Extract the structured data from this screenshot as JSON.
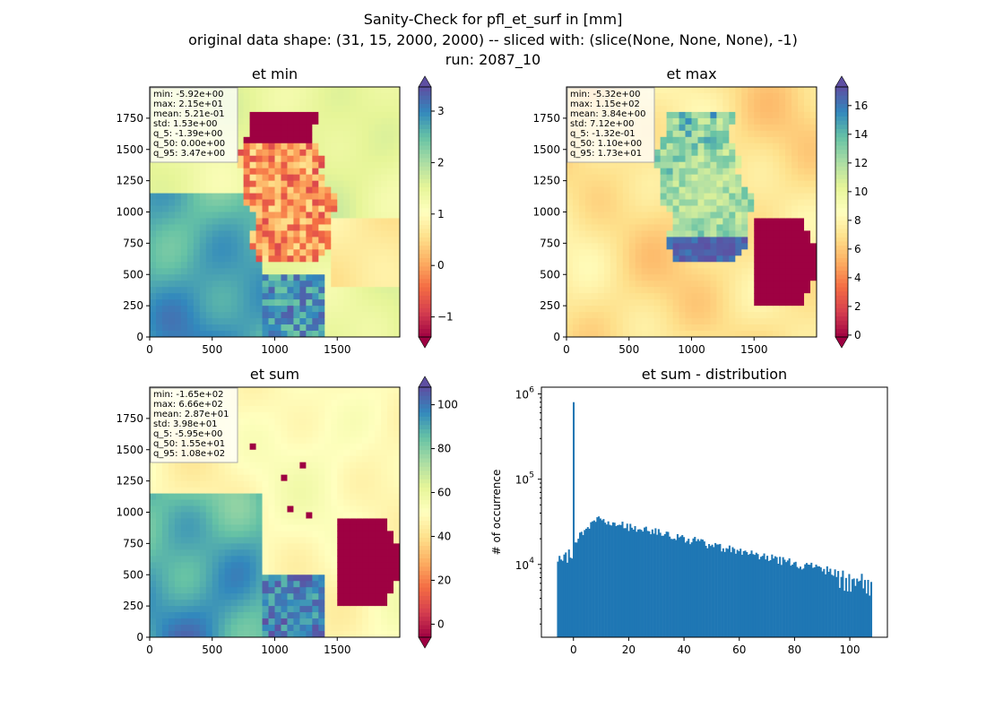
{
  "figure": {
    "title_lines": [
      "Sanity-Check for pfl_et_surf in [mm]",
      "original data shape: (31, 15, 2000, 2000) -- sliced with: (slice(None, None, None), -1)",
      "run: 2087_10"
    ]
  },
  "colormap": {
    "name": "Spectral",
    "stops": [
      "#9e0142",
      "#d53e4f",
      "#f46d43",
      "#fdae61",
      "#fee08b",
      "#ffffbf",
      "#e6f598",
      "#abdda4",
      "#66c2a5",
      "#3288bd",
      "#5e4fa2"
    ]
  },
  "chart_data": [
    {
      "type": "heatmap",
      "title": "et min",
      "xlim": [
        0,
        2000
      ],
      "ylim": [
        0,
        2000
      ],
      "xticks": [
        0,
        500,
        1000,
        1500
      ],
      "yticks": [
        0,
        250,
        500,
        750,
        1000,
        1250,
        1500,
        1750
      ],
      "colorbar": {
        "range": [
          -1.39,
          3.47
        ],
        "ticks": [
          -1,
          0,
          1,
          2,
          3
        ],
        "extend": "both"
      },
      "stats": [
        "min: -5.92e+00",
        "max: 2.15e+01",
        "mean: 5.21e-01",
        "std: 1.53e+00",
        "q_5: -1.39e+00",
        "q_50: 0.00e+00",
        "q_95: 3.47e+00"
      ]
    },
    {
      "type": "heatmap",
      "title": "et max",
      "xlim": [
        0,
        2000
      ],
      "ylim": [
        0,
        2000
      ],
      "xticks": [
        0,
        500,
        1000,
        1500
      ],
      "yticks": [
        0,
        250,
        500,
        750,
        1000,
        1250,
        1500,
        1750
      ],
      "colorbar": {
        "range": [
          -0.132,
          17.3
        ],
        "ticks": [
          0,
          2,
          4,
          6,
          8,
          10,
          12,
          14,
          16
        ],
        "extend": "both"
      },
      "stats": [
        "min: -5.32e+00",
        "max: 1.15e+02",
        "mean: 3.84e+00",
        "std: 7.12e+00",
        "q_5: -1.32e-01",
        "q_50: 1.10e+00",
        "q_95: 1.73e+01"
      ]
    },
    {
      "type": "heatmap",
      "title": "et sum",
      "xlim": [
        0,
        2000
      ],
      "ylim": [
        0,
        2000
      ],
      "xticks": [
        0,
        500,
        1000,
        1500
      ],
      "yticks": [
        0,
        250,
        500,
        750,
        1000,
        1250,
        1500,
        1750
      ],
      "colorbar": {
        "range": [
          -5.95,
          108
        ],
        "ticks": [
          0,
          20,
          40,
          60,
          80,
          100
        ],
        "extend": "both"
      },
      "stats": [
        "min: -1.65e+02",
        "max: 6.66e+02",
        "mean: 2.87e+01",
        "std: 3.98e+01",
        "q_5: -5.95e+00",
        "q_50: 1.55e+01",
        "q_95: 1.08e+02"
      ]
    },
    {
      "type": "bar",
      "title": "et sum - distribution",
      "ylabel": "# of occurrence",
      "xlabel": "",
      "yscale": "log",
      "xlim": [
        -11.6,
        113.6
      ],
      "ylim": [
        1400,
        1200000
      ],
      "xticks": [
        0,
        20,
        40,
        60,
        80,
        100
      ],
      "yticks": [
        {
          "value": 10000,
          "label": "10",
          "exp": "4"
        },
        {
          "value": 100000,
          "label": "10",
          "exp": "5"
        },
        {
          "value": 1000000,
          "label": "10",
          "exp": "6"
        }
      ],
      "bin_range": [
        -5.95,
        108
      ],
      "color": "#1f77b4",
      "spike": {
        "x": 0,
        "value": 800000
      }
    }
  ]
}
